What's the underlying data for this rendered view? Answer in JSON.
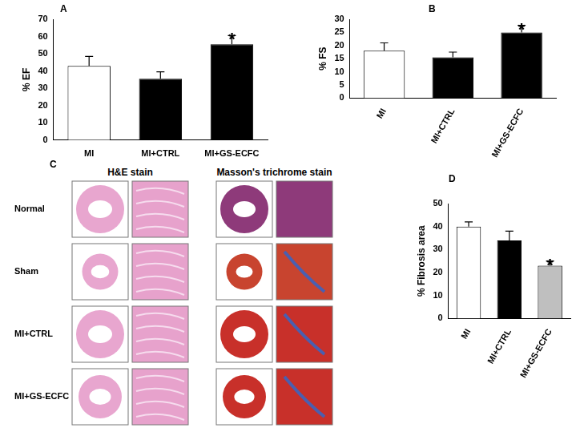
{
  "chart_data": [
    {
      "type": "bar",
      "title": "A",
      "y_label": "% EF",
      "categories": [
        "MI",
        "MI+CTRL",
        "MI+GS-ECFC"
      ],
      "values": [
        43,
        35.5,
        55.5
      ],
      "errors": [
        5.5,
        4,
        5
      ],
      "colors": [
        "#ffffff",
        "#000000",
        "#000000"
      ],
      "ylim": [
        0,
        70
      ],
      "yticks": [
        0,
        10,
        20,
        30,
        40,
        50,
        60,
        70
      ],
      "grid": false,
      "annotations": [
        {
          "category": "MI+GS-ECFC",
          "text": "*"
        }
      ]
    },
    {
      "type": "bar",
      "title": "B",
      "y_label": "% FS",
      "categories": [
        "MI",
        "MI+CTRL",
        "MI+GS-ECFC"
      ],
      "values": [
        18,
        15.5,
        25
      ],
      "errors": [
        3,
        2,
        2.7
      ],
      "colors": [
        "#ffffff",
        "#000000",
        "#000000"
      ],
      "ylim": [
        0,
        30
      ],
      "yticks": [
        0,
        5,
        10,
        15,
        20,
        25,
        30
      ],
      "grid": false,
      "annotations": [
        {
          "category": "MI+GS-ECFC",
          "text": "*"
        }
      ]
    },
    {
      "type": "bar",
      "title": "D",
      "y_label": "% Fibrosis area",
      "categories": [
        "MI",
        "MI+CTRL",
        "MI+GS-ECFC"
      ],
      "values": [
        40,
        34,
        23
      ],
      "errors": [
        2,
        4,
        2
      ],
      "colors": [
        "#ffffff",
        "#000000",
        "#bfbfbf"
      ],
      "ylim": [
        0,
        50
      ],
      "yticks": [
        0,
        10,
        20,
        30,
        40,
        50
      ],
      "grid": false,
      "annotations": [
        {
          "category": "MI+GS-ECFC",
          "text": "*"
        }
      ]
    }
  ],
  "histology": {
    "title": "C",
    "columns": [
      "H&E stain",
      "Masson's trichrome stain"
    ],
    "rows": [
      "Normal",
      "Sham",
      "MI+CTRL",
      "MI+GS-ECFC"
    ]
  }
}
